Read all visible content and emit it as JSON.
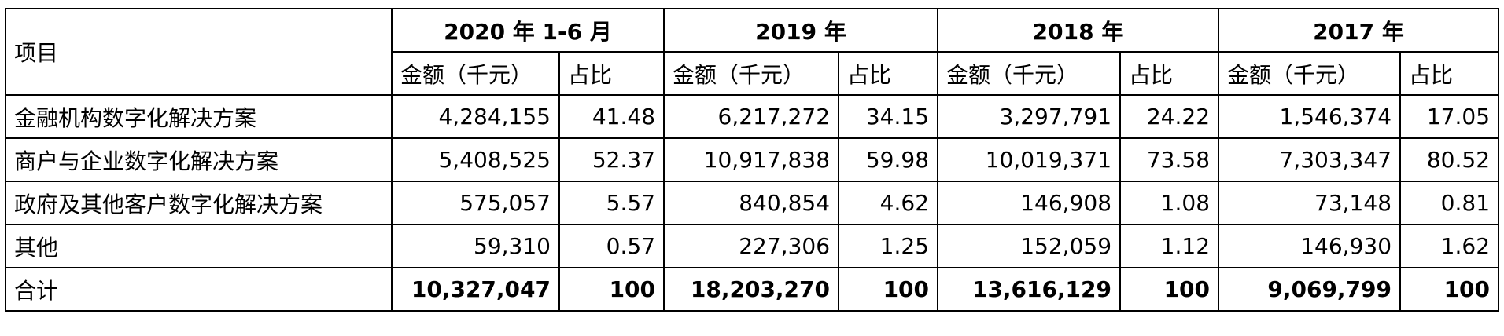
{
  "table": {
    "header_row1": {
      "item_label": "项目",
      "periods": [
        "2020 年 1-6 月",
        "2019 年",
        "2018 年",
        "2017 年"
      ]
    },
    "sub_headers": {
      "amount_label": "金额（千元）",
      "ratio_label": "占比"
    },
    "rows": [
      {
        "name": "金融机构数字化解决方案",
        "cells": [
          "4,284,155",
          "41.48",
          "6,217,272",
          "34.15",
          "3,297,791",
          "24.22",
          "1,546,374",
          "17.05"
        ]
      },
      {
        "name": "商户与企业数字化解决方案",
        "cells": [
          "5,408,525",
          "52.37",
          "10,917,838",
          "59.98",
          "10,019,371",
          "73.58",
          "7,303,347",
          "80.52"
        ]
      },
      {
        "name": "政府及其他客户数字化解决方案",
        "cells": [
          "575,057",
          "5.57",
          "840,854",
          "4.62",
          "146,908",
          "1.08",
          "73,148",
          "0.81"
        ]
      },
      {
        "name": "其他",
        "cells": [
          "59,310",
          "0.57",
          "227,306",
          "1.25",
          "152,059",
          "1.12",
          "146,930",
          "1.62"
        ]
      }
    ],
    "total_row": {
      "name": "合计",
      "cells": [
        "10,327,047",
        "100",
        "18,203,270",
        "100",
        "13,616,129",
        "100",
        "9,069,799",
        "100"
      ]
    }
  }
}
